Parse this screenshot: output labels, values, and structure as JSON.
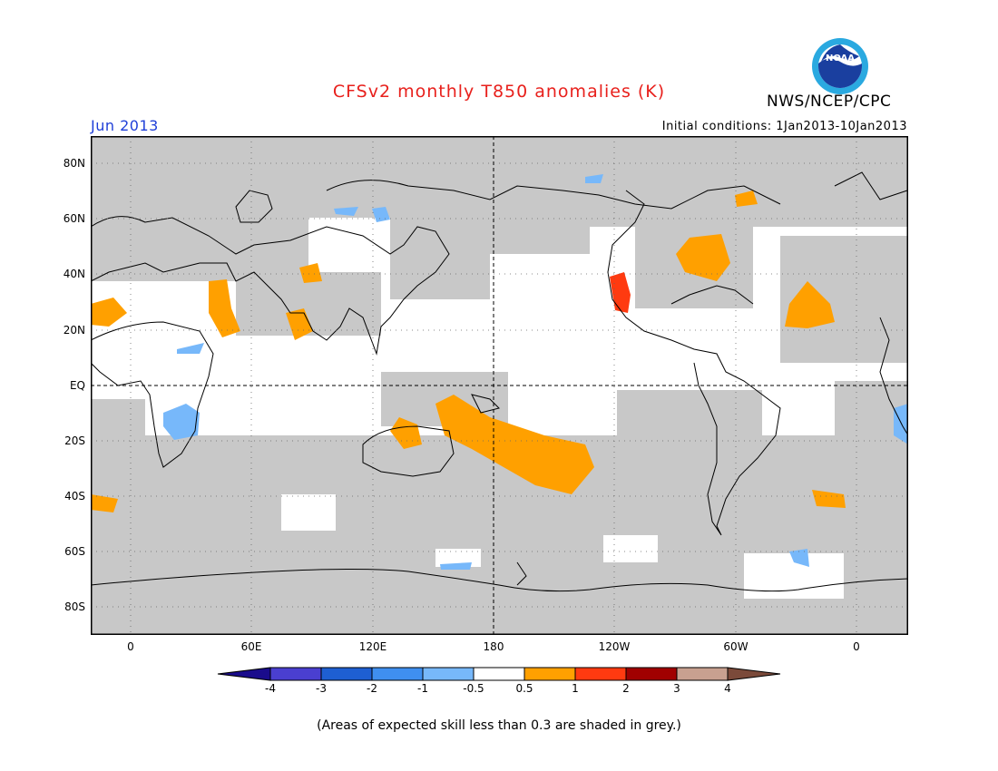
{
  "header": {
    "title": "CFSv2 monthly T850 anomalies (K)",
    "org": "NWS/NCEP/CPC",
    "month": "Jun 2013",
    "initial_conditions": "Initial conditions: 1Jan2013-10Jan2013",
    "logo_text": "NOAA"
  },
  "axes": {
    "lat_labels": [
      "80N",
      "60N",
      "40N",
      "20N",
      "EQ",
      "20S",
      "40S",
      "60S",
      "80S"
    ],
    "lon_labels": [
      "0",
      "60E",
      "120E",
      "180",
      "120W",
      "60W",
      "0"
    ]
  },
  "colorbar": {
    "labels": [
      "-4",
      "-3",
      "-2",
      "-1",
      "-0.5",
      "0.5",
      "1",
      "2",
      "3",
      "4"
    ],
    "colors": [
      "#1a0c8c",
      "#4a3fd0",
      "#1e5fd2",
      "#3f8ff0",
      "#77b8fa",
      "#ffffff",
      "#ffa000",
      "#ff3a10",
      "#a00000",
      "#c8a090",
      "#7b4a3a"
    ]
  },
  "colors": {
    "grey_low_skill": "#c8c8c8",
    "warm_anomaly": "#ffa000",
    "strong_warm": "#ff3a10",
    "cool_anomaly": "#77b8fa",
    "title_red": "#e8201c",
    "month_blue": "#1f3fd8"
  },
  "footer": {
    "note": "(Areas of expected skill less than 0.3 are shaded in grey.)"
  }
}
